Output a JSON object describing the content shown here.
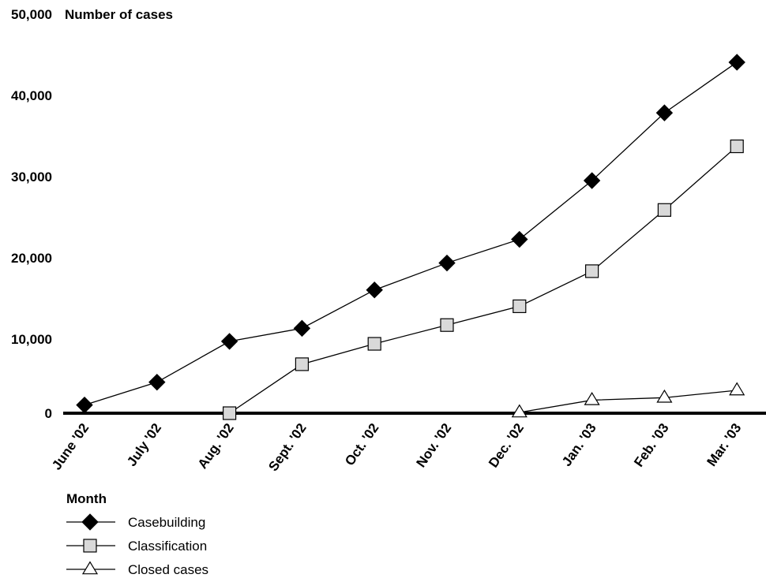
{
  "chart_data": {
    "type": "line",
    "ylabel": "Number of cases",
    "xlabel": "Month",
    "ylim": [
      0,
      50000
    ],
    "yticks": [
      0,
      10000,
      20000,
      30000,
      40000,
      50000
    ],
    "ytick_labels": [
      "0",
      "10,000",
      "20,000",
      "30,000",
      "40,000",
      "50,000"
    ],
    "categories": [
      "June '02",
      "July '02",
      "Aug. '02",
      "Sept. '02",
      "Oct. '02",
      "Nov. '02",
      "Dec. '02",
      "Jan. '03",
      "Feb. '03",
      "Mar. '03"
    ],
    "grid": false,
    "legend_position": "bottom-left",
    "series": [
      {
        "name": "Casebuilding",
        "marker": "diamond",
        "marker_fill": "#000000",
        "values": [
          1000,
          3800,
          8800,
          10400,
          15100,
          18400,
          21300,
          28500,
          36800,
          43000
        ]
      },
      {
        "name": "Classification",
        "marker": "square",
        "marker_fill": "#d9d9d9",
        "values": [
          null,
          null,
          0,
          6000,
          8500,
          10800,
          13100,
          17400,
          24900,
          32700
        ]
      },
      {
        "name": "Closed cases",
        "marker": "triangle",
        "marker_fill": "#ffffff",
        "values": [
          null,
          null,
          null,
          null,
          null,
          null,
          100,
          1600,
          1900,
          2800
        ]
      }
    ]
  }
}
